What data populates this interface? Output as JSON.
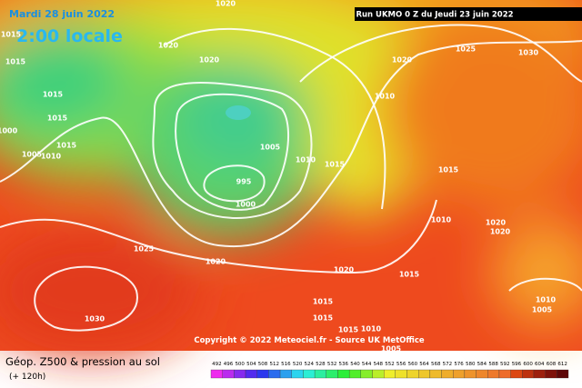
{
  "header": {
    "date": "Mardi 28 juin 2022",
    "time": "2:00 locale",
    "run": "Run UKMO 0 Z du Jeudi 23 juin 2022"
  },
  "map": {
    "isobar_labels": [
      1020,
      1020,
      1020,
      1015,
      1015,
      1015,
      1015,
      1015,
      1000,
      1005,
      1010,
      1005,
      995,
      1000,
      1010,
      1015,
      1010,
      1020,
      1025,
      1030,
      1015,
      1010,
      1020,
      1020,
      1025,
      1020,
      1020,
      1015,
      1015,
      1015,
      1015,
      1010,
      1005,
      1030,
      1010,
      1005
    ]
  },
  "copyright": "Copyright © 2022 Meteociel.fr - Source UK MetOffice",
  "legend": {
    "title": "Géop. Z500 & pression au sol",
    "lead": "(+ 120h)",
    "scale": [
      492,
      496,
      500,
      504,
      508,
      512,
      516,
      520,
      524,
      528,
      532,
      536,
      540,
      544,
      548,
      552,
      556,
      560,
      564,
      568,
      572,
      576,
      580,
      584,
      588,
      592,
      596,
      600,
      604,
      608,
      612
    ]
  }
}
